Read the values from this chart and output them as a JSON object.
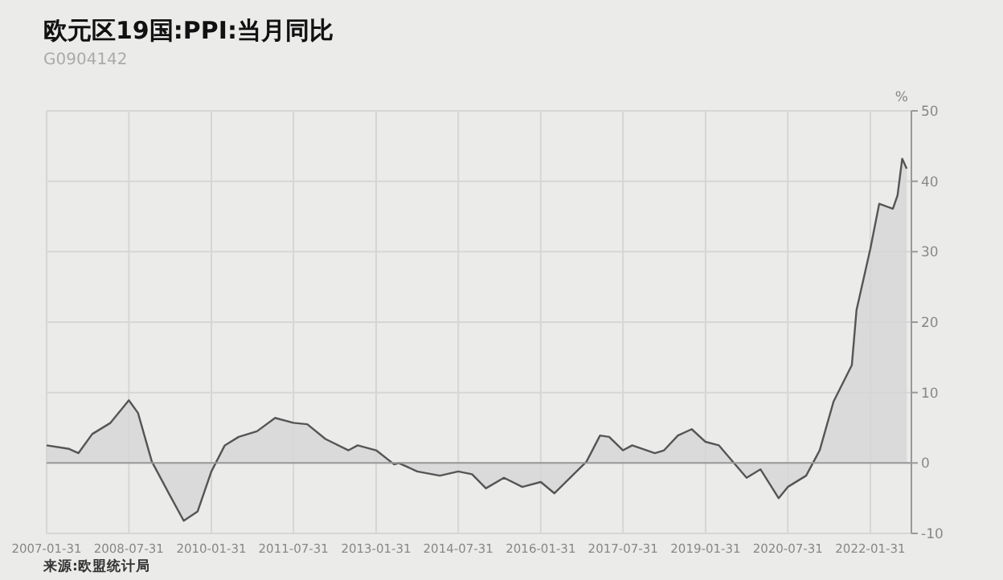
{
  "chart_data": {
    "type": "area",
    "title": "欧元区19国:PPI:当月同比",
    "subtitle": "G0904142",
    "ylabel": "%",
    "annotations": [
      "来源:欧盟统计局"
    ],
    "x": [
      "2007-01-31",
      "2007-06-30",
      "2007-08-31",
      "2007-11-30",
      "2008-03-31",
      "2008-07-31",
      "2008-09-30",
      "2008-12-31",
      "2009-04-30",
      "2009-07-31",
      "2009-10-31",
      "2010-01-31",
      "2010-04-30",
      "2010-07-31",
      "2010-11-30",
      "2011-03-31",
      "2011-07-31",
      "2011-10-31",
      "2012-02-29",
      "2012-07-31",
      "2012-09-30",
      "2013-01-31",
      "2013-05-31",
      "2013-06-30",
      "2013-10-31",
      "2014-03-31",
      "2014-07-31",
      "2014-10-31",
      "2015-01-31",
      "2015-05-31",
      "2015-09-30",
      "2016-01-31",
      "2016-04-30",
      "2016-11-30",
      "2017-02-28",
      "2017-04-30",
      "2017-07-31",
      "2017-09-30",
      "2018-02-28",
      "2018-04-30",
      "2018-07-31",
      "2018-10-31",
      "2019-01-31",
      "2019-04-30",
      "2019-10-31",
      "2020-01-31",
      "2020-05-31",
      "2020-07-31",
      "2020-11-30",
      "2021-02-28",
      "2021-05-31",
      "2021-09-30",
      "2021-10-31",
      "2022-01-31",
      "2022-03-31",
      "2022-06-30",
      "2022-07-31",
      "2022-08-31",
      "2022-09-30"
    ],
    "series": [
      {
        "color": "#555555",
        "values": [
          2.5,
          2.0,
          1.4,
          4.1,
          5.7,
          8.9,
          7.1,
          0.2,
          -4.6,
          -8.2,
          -6.9,
          -1.2,
          2.5,
          3.7,
          4.5,
          6.4,
          5.7,
          5.5,
          3.4,
          1.8,
          2.5,
          1.8,
          -0.2,
          0,
          -1.2,
          -1.8,
          -1.2,
          -1.6,
          -3.6,
          -2.1,
          -3.4,
          -2.7,
          -4.3,
          0.2,
          3.9,
          3.7,
          1.8,
          2.5,
          1.4,
          1.8,
          3.9,
          4.8,
          3.0,
          2.5,
          -2.1,
          -0.9,
          -5.0,
          -3.4,
          -1.8,
          1.8,
          8.7,
          13.9,
          21.7,
          30.4,
          36.8,
          36.1,
          38.0,
          43.2,
          41.8
        ]
      }
    ],
    "xlim": [
      "2007-01-31",
      "2022-10-31"
    ],
    "xticks": [
      "2007-01-31",
      "2008-07-31",
      "2010-01-31",
      "2011-07-31",
      "2013-01-31",
      "2014-07-31",
      "2016-01-31",
      "2017-07-31",
      "2019-01-31",
      "2020-07-31",
      "2022-01-31"
    ],
    "ylim": [
      -10,
      50
    ],
    "yticks": [
      -10,
      0,
      10,
      20,
      30,
      40,
      50
    ],
    "grid": true
  }
}
